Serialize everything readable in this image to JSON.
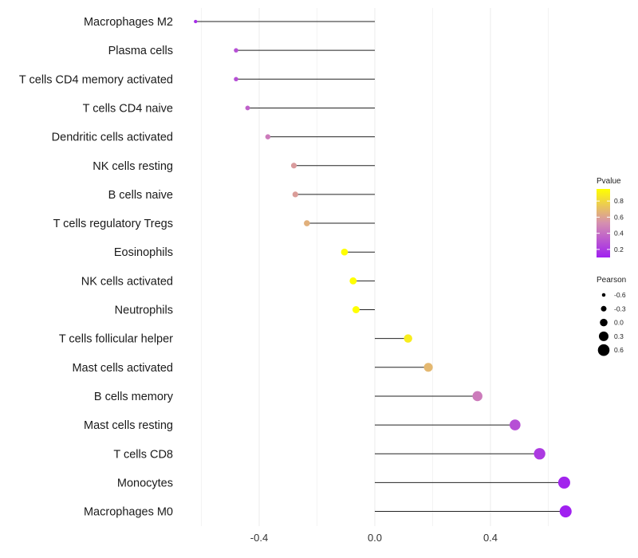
{
  "chart_data": {
    "type": "lollipop",
    "title": "",
    "xlabel": "",
    "ylabel": "",
    "xlim": [
      -0.66,
      0.67
    ],
    "x_ticks": [
      -0.4,
      0.0,
      0.4
    ],
    "x_tick_labels": [
      "-0.4",
      "0.0",
      "0.4"
    ],
    "categories": [
      {
        "name": "Macrophages M2",
        "pearson": -0.62,
        "pvalue": 0.15
      },
      {
        "name": "Plasma cells",
        "pearson": -0.48,
        "pvalue": 0.28
      },
      {
        "name": "T cells CD4 memory activated",
        "pearson": -0.48,
        "pvalue": 0.28
      },
      {
        "name": "T cells CD4 naive",
        "pearson": -0.44,
        "pvalue": 0.35
      },
      {
        "name": "Dendritic cells activated",
        "pearson": -0.37,
        "pvalue": 0.45
      },
      {
        "name": "NK cells resting",
        "pearson": -0.28,
        "pvalue": 0.57
      },
      {
        "name": "B cells naive",
        "pearson": -0.275,
        "pvalue": 0.58
      },
      {
        "name": "T cells regulatory  Tregs",
        "pearson": -0.235,
        "pvalue": 0.65
      },
      {
        "name": "Eosinophils",
        "pearson": -0.105,
        "pvalue": 0.95
      },
      {
        "name": "NK cells activated",
        "pearson": -0.075,
        "pvalue": 0.95
      },
      {
        "name": "Neutrophils",
        "pearson": -0.065,
        "pvalue": 0.95
      },
      {
        "name": "T cells follicular helper",
        "pearson": 0.115,
        "pvalue": 0.88
      },
      {
        "name": "Mast cells activated",
        "pearson": 0.185,
        "pvalue": 0.68
      },
      {
        "name": "B cells memory",
        "pearson": 0.355,
        "pvalue": 0.45
      },
      {
        "name": "Mast cells resting",
        "pearson": 0.485,
        "pvalue": 0.28
      },
      {
        "name": "T cells CD8",
        "pearson": 0.57,
        "pvalue": 0.2
      },
      {
        "name": "Monocytes",
        "pearson": 0.655,
        "pvalue": 0.12
      },
      {
        "name": "Macrophages M0",
        "pearson": 0.66,
        "pvalue": 0.1
      }
    ],
    "legend_pvalue": {
      "title": "Pvalue",
      "ticks": [
        0.8,
        0.6,
        0.4,
        0.2
      ],
      "tick_labels": [
        "0.8",
        "0.6",
        "0.4",
        "0.2"
      ],
      "range": [
        0.1,
        0.95
      ],
      "color_low": "#a020f0",
      "color_mid": "#d58fb0",
      "color_high": "#ffff00"
    },
    "legend_pearson": {
      "title": "Pearson",
      "values": [
        -0.6,
        -0.3,
        0.0,
        0.3,
        0.6
      ],
      "labels": [
        "-0.6",
        "-0.3",
        "0.0",
        "0.3",
        "0.6"
      ]
    },
    "legend_position": "right"
  }
}
